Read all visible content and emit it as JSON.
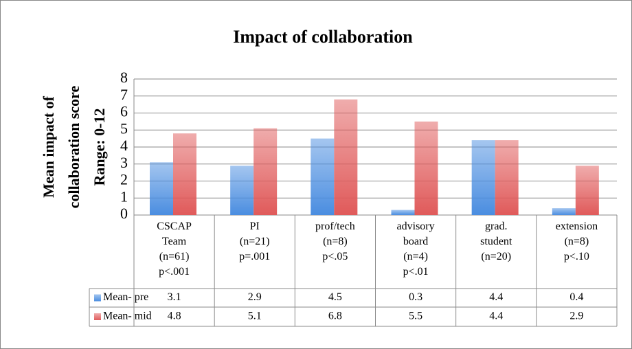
{
  "chart_data": {
    "type": "bar",
    "title": "Impact of collaboration",
    "ylabel": [
      "Mean impact of",
      "collaboration score",
      "Range: 0-12"
    ],
    "categories": [
      "CSCAP\nTeam\n(n=61)\np<.001",
      "PI\n(n=21)\np=.001",
      "prof/tech\n(n=8)\np<.05",
      "advisory\nboard\n(n=4)\np<.01",
      "grad.\nstudent\n(n=20)",
      "extension\n(n=8)\np<.10"
    ],
    "series": [
      {
        "name": "Mean- pre",
        "color": "#4a8de0",
        "values": [
          3.1,
          2.9,
          4.5,
          0.3,
          4.4,
          0.4
        ]
      },
      {
        "name": "Mean- mid",
        "color": "#e05a5a",
        "values": [
          4.8,
          5.1,
          6.8,
          5.5,
          4.4,
          2.9
        ]
      }
    ],
    "ylim": [
      0,
      8
    ],
    "yticks": [
      0,
      1,
      2,
      3,
      4,
      5,
      6,
      7,
      8
    ],
    "grid": true
  }
}
